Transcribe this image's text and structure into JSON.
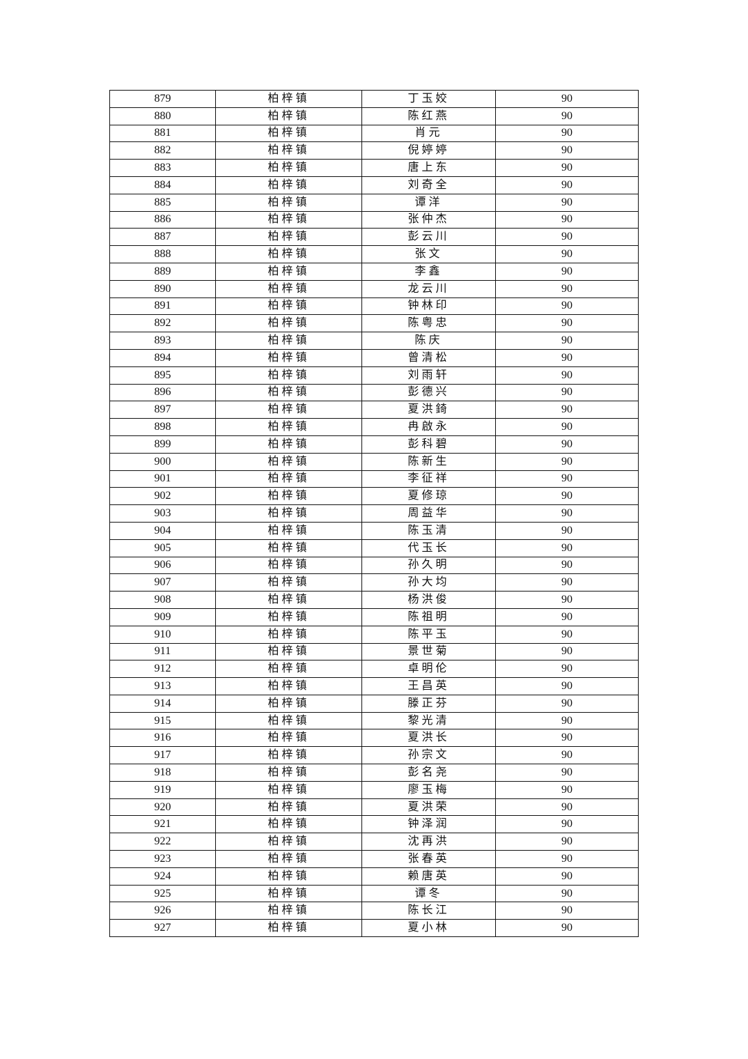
{
  "table": {
    "rows": [
      [
        "879",
        "柏梓镇",
        "丁玉姣",
        "90"
      ],
      [
        "880",
        "柏梓镇",
        "陈红燕",
        "90"
      ],
      [
        "881",
        "柏梓镇",
        "肖元",
        "90"
      ],
      [
        "882",
        "柏梓镇",
        "倪婷婷",
        "90"
      ],
      [
        "883",
        "柏梓镇",
        "唐上东",
        "90"
      ],
      [
        "884",
        "柏梓镇",
        "刘奇全",
        "90"
      ],
      [
        "885",
        "柏梓镇",
        "谭洋",
        "90"
      ],
      [
        "886",
        "柏梓镇",
        "张仲杰",
        "90"
      ],
      [
        "887",
        "柏梓镇",
        "彭云川",
        "90"
      ],
      [
        "888",
        "柏梓镇",
        "张文",
        "90"
      ],
      [
        "889",
        "柏梓镇",
        "李鑫",
        "90"
      ],
      [
        "890",
        "柏梓镇",
        "龙云川",
        "90"
      ],
      [
        "891",
        "柏梓镇",
        "钟林印",
        "90"
      ],
      [
        "892",
        "柏梓镇",
        "陈粤忠",
        "90"
      ],
      [
        "893",
        "柏梓镇",
        "陈庆",
        "90"
      ],
      [
        "894",
        "柏梓镇",
        "曾清松",
        "90"
      ],
      [
        "895",
        "柏梓镇",
        "刘雨轩",
        "90"
      ],
      [
        "896",
        "柏梓镇",
        "彭德兴",
        "90"
      ],
      [
        "897",
        "柏梓镇",
        "夏洪錡",
        "90"
      ],
      [
        "898",
        "柏梓镇",
        "冉啟永",
        "90"
      ],
      [
        "899",
        "柏梓镇",
        "彭科碧",
        "90"
      ],
      [
        "900",
        "柏梓镇",
        "陈新生",
        "90"
      ],
      [
        "901",
        "柏梓镇",
        "李征祥",
        "90"
      ],
      [
        "902",
        "柏梓镇",
        "夏修琼",
        "90"
      ],
      [
        "903",
        "柏梓镇",
        "周益华",
        "90"
      ],
      [
        "904",
        "柏梓镇",
        "陈玉清",
        "90"
      ],
      [
        "905",
        "柏梓镇",
        "代玉长",
        "90"
      ],
      [
        "906",
        "柏梓镇",
        "孙久明",
        "90"
      ],
      [
        "907",
        "柏梓镇",
        "孙大均",
        "90"
      ],
      [
        "908",
        "柏梓镇",
        "杨洪俊",
        "90"
      ],
      [
        "909",
        "柏梓镇",
        "陈祖明",
        "90"
      ],
      [
        "910",
        "柏梓镇",
        "陈平玉",
        "90"
      ],
      [
        "911",
        "柏梓镇",
        "景世菊",
        "90"
      ],
      [
        "912",
        "柏梓镇",
        "卓明伦",
        "90"
      ],
      [
        "913",
        "柏梓镇",
        "王昌英",
        "90"
      ],
      [
        "914",
        "柏梓镇",
        "滕正芬",
        "90"
      ],
      [
        "915",
        "柏梓镇",
        "黎光清",
        "90"
      ],
      [
        "916",
        "柏梓镇",
        "夏洪长",
        "90"
      ],
      [
        "917",
        "柏梓镇",
        "孙宗文",
        "90"
      ],
      [
        "918",
        "柏梓镇",
        "彭名尧",
        "90"
      ],
      [
        "919",
        "柏梓镇",
        "廖玉梅",
        "90"
      ],
      [
        "920",
        "柏梓镇",
        "夏洪荣",
        "90"
      ],
      [
        "921",
        "柏梓镇",
        "钟泽润",
        "90"
      ],
      [
        "922",
        "柏梓镇",
        "沈再洪",
        "90"
      ],
      [
        "923",
        "柏梓镇",
        "张春英",
        "90"
      ],
      [
        "924",
        "柏梓镇",
        "赖唐英",
        "90"
      ],
      [
        "925",
        "柏梓镇",
        "谭冬",
        "90"
      ],
      [
        "926",
        "柏梓镇",
        "陈长江",
        "90"
      ],
      [
        "927",
        "柏梓镇",
        "夏小林",
        "90"
      ]
    ]
  }
}
